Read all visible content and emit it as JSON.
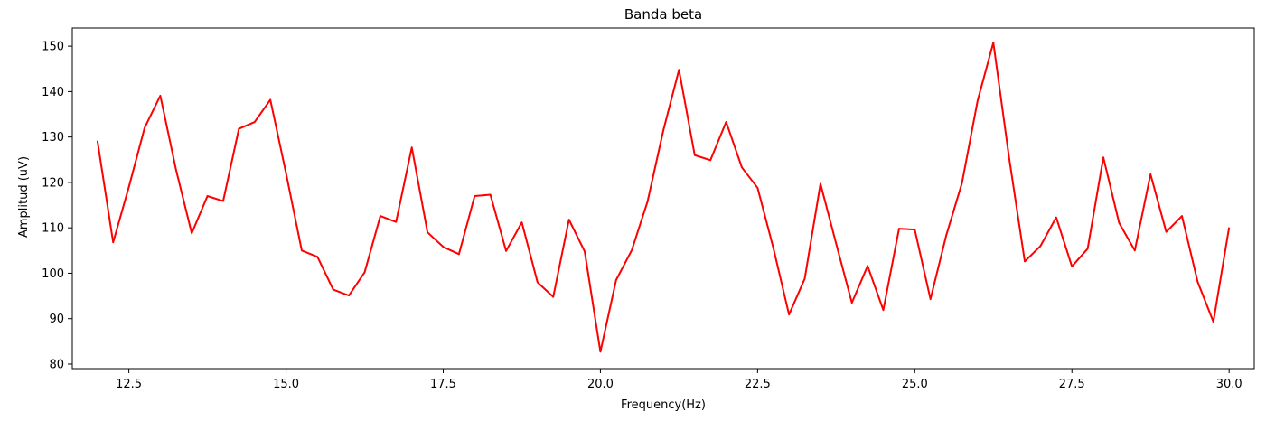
{
  "chart_data": {
    "type": "line",
    "title": "Banda beta",
    "xlabel": "Frequency(Hz)",
    "ylabel": "Amplitud (uV)",
    "xlim": [
      11.6,
      30.4
    ],
    "ylim": [
      79,
      154
    ],
    "xticks": [
      12.5,
      15.0,
      17.5,
      20.0,
      22.5,
      25.0,
      27.5,
      30.0
    ],
    "xtick_labels": [
      "12.5",
      "15.0",
      "17.5",
      "20.0",
      "22.5",
      "25.0",
      "27.5",
      "30.0"
    ],
    "yticks": [
      80,
      90,
      100,
      110,
      120,
      130,
      140,
      150
    ],
    "ytick_labels": [
      "80",
      "90",
      "100",
      "110",
      "120",
      "130",
      "140",
      "150"
    ],
    "grid": false,
    "series": [
      {
        "color": "#ff0000",
        "x": [
          12.0,
          12.25,
          12.5,
          12.75,
          13.0,
          13.25,
          13.5,
          13.75,
          14.0,
          14.25,
          14.5,
          14.75,
          15.0,
          15.25,
          15.5,
          15.75,
          16.0,
          16.25,
          16.5,
          16.75,
          17.0,
          17.25,
          17.5,
          17.75,
          18.0,
          18.25,
          18.5,
          18.75,
          19.0,
          19.25,
          19.5,
          19.75,
          20.0,
          20.25,
          20.5,
          20.75,
          21.0,
          21.25,
          21.5,
          21.75,
          22.0,
          22.25,
          22.5,
          22.75,
          23.0,
          23.25,
          23.5,
          23.75,
          24.0,
          24.25,
          24.5,
          24.75,
          25.0,
          25.25,
          25.5,
          25.75,
          26.0,
          26.25,
          26.5,
          26.75,
          27.0,
          27.25,
          27.5,
          27.75,
          28.0,
          28.25,
          28.5,
          28.75,
          29.0,
          29.25,
          29.5,
          29.75,
          30.0
        ],
        "y": [
          129.2,
          106.8,
          119.0,
          132.0,
          139.1,
          122.8,
          108.8,
          117.0,
          115.9,
          131.8,
          133.3,
          138.2,
          122.0,
          105.0,
          103.6,
          96.4,
          95.1,
          100.2,
          112.6,
          111.3,
          127.7,
          109.0,
          105.8,
          104.2,
          117.0,
          117.3,
          104.9,
          111.2,
          98.0,
          94.8,
          111.8,
          104.8,
          82.7,
          98.5,
          105.1,
          115.8,
          131.4,
          144.8,
          126.0,
          124.9,
          133.3,
          123.3,
          118.8,
          105.6,
          90.9,
          98.8,
          119.7,
          106.5,
          93.5,
          101.6,
          91.9,
          109.8,
          109.6,
          94.3,
          108.3,
          119.8,
          138.0,
          150.8,
          125.5,
          102.6,
          106.0,
          112.3,
          101.5,
          105.4,
          125.5,
          111.1,
          105.0,
          121.8,
          109.1,
          112.6,
          98.1,
          89.3,
          110.1
        ]
      }
    ]
  }
}
